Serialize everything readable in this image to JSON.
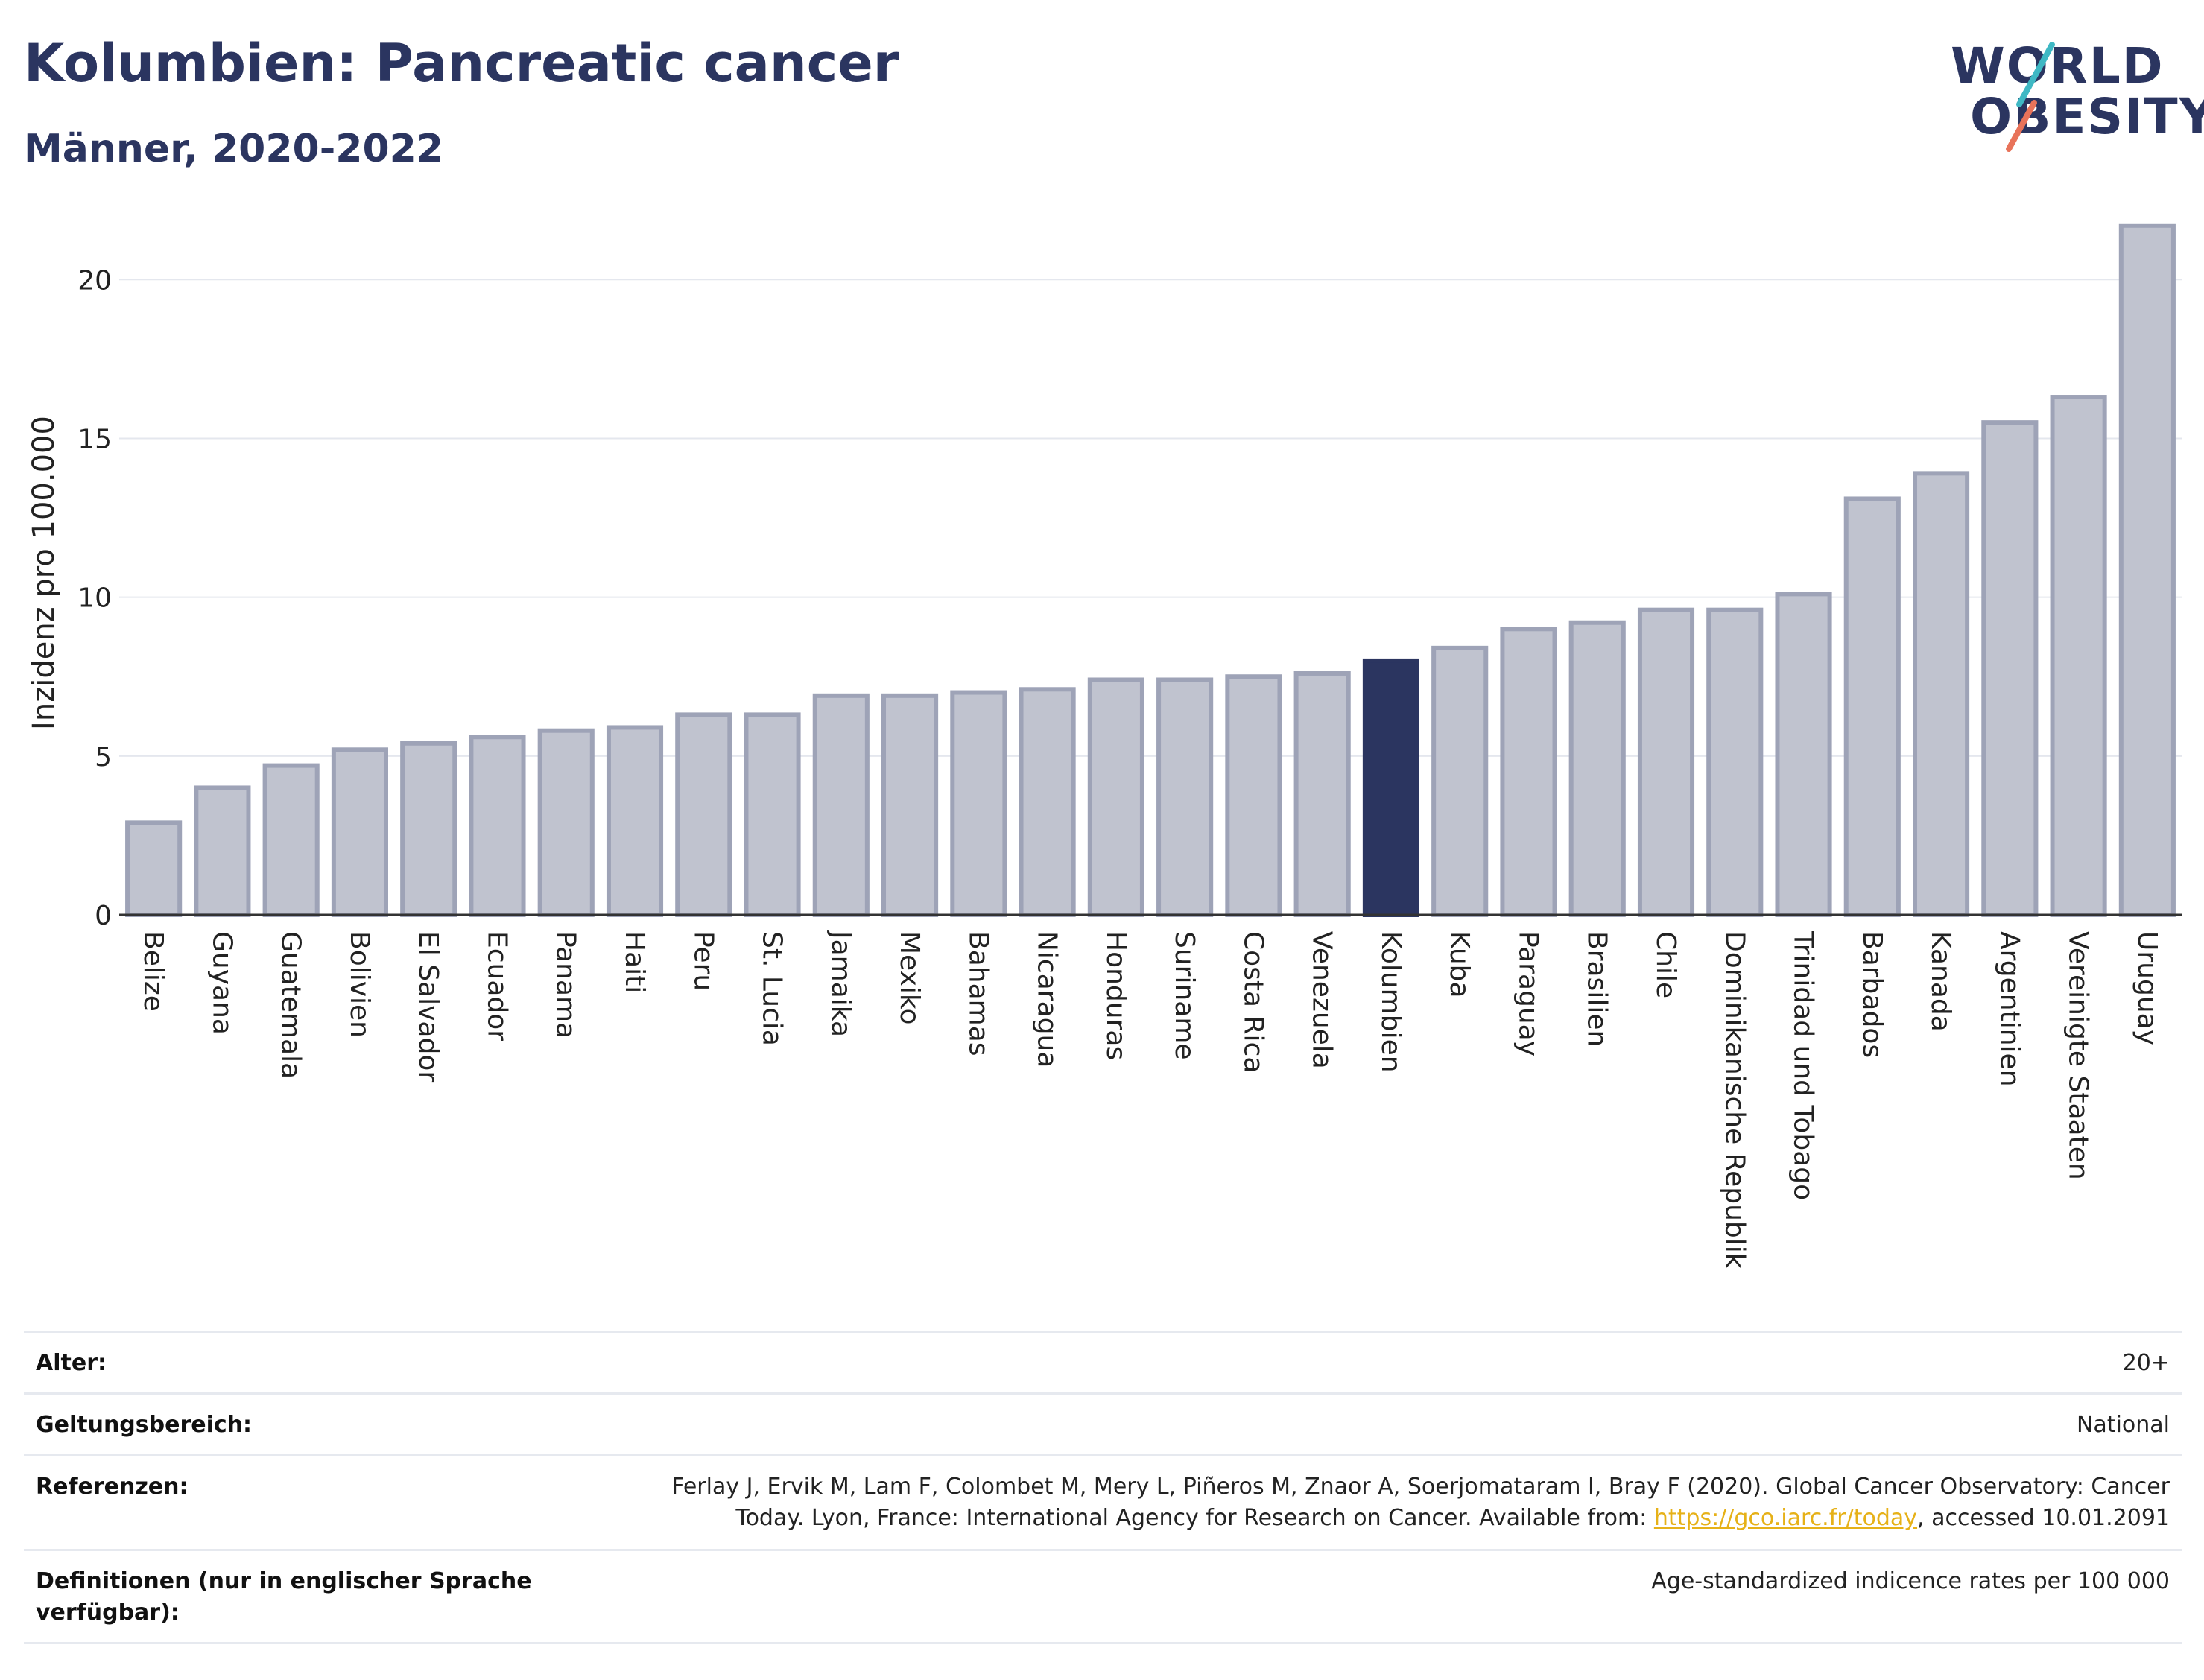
{
  "header": {
    "title": "Kolumbien: Pancreatic cancer",
    "subtitle": "Männer, 2020-2022"
  },
  "logo": {
    "line1": "WORLD",
    "line2": "OBESITY",
    "accent_colors": [
      "#3fb8c4",
      "#e8735a"
    ]
  },
  "colors": {
    "bar_default": "#c0c3cf",
    "bar_default_stroke": "#9ea3b7",
    "bar_highlight": "#2b3560",
    "text_dark": "#2b3560",
    "link": "#e6b118"
  },
  "chart_data": {
    "type": "bar",
    "categories": [
      "Belize",
      "Guyana",
      "Guatemala",
      "Bolivien",
      "El Salvador",
      "Ecuador",
      "Panama",
      "Haiti",
      "Peru",
      "St. Lucia",
      "Jamaika",
      "Mexiko",
      "Bahamas",
      "Nicaragua",
      "Honduras",
      "Suriname",
      "Costa Rica",
      "Venezuela",
      "Kolumbien",
      "Kuba",
      "Paraguay",
      "Brasilien",
      "Chile",
      "Dominikanische Republik",
      "Trinidad und Tobago",
      "Barbados",
      "Kanada",
      "Argentinien",
      "Vereinigte Staaten",
      "Uruguay"
    ],
    "values": [
      2.9,
      4.0,
      4.7,
      5.2,
      5.4,
      5.6,
      5.8,
      5.9,
      6.3,
      6.3,
      6.9,
      6.9,
      7.0,
      7.1,
      7.4,
      7.4,
      7.5,
      7.6,
      8.0,
      8.4,
      9.0,
      9.2,
      9.6,
      9.6,
      10.1,
      13.1,
      13.9,
      15.5,
      16.3,
      21.7
    ],
    "highlight": "Kolumbien",
    "ylabel": "Inzidenz pro 100.000",
    "xlabel": "",
    "ylim": [
      0,
      22
    ],
    "yticks": [
      0,
      5,
      10,
      15,
      20
    ],
    "grid": true,
    "legend": "none"
  },
  "meta": {
    "rows": [
      {
        "label": "Alter:",
        "value": "20+"
      },
      {
        "label": "Geltungsbereich:",
        "value": "National"
      },
      {
        "label": "Referenzen:",
        "value_line1": "Ferlay J, Ervik M, Lam F, Colombet M, Mery L, Piñeros M, Znaor A, Soerjomataram I, Bray F (2020). Global Cancer Observatory: Cancer",
        "value_line2_pre": "Today. Lyon, France: International Agency for Research on Cancer. Available from: ",
        "link": "https://gco.iarc.fr/today",
        "value_line2_post": ", accessed 10.01.2091"
      },
      {
        "label_line1": "Definitionen (nur in englischer Sprache",
        "label_line2": "verfügbar):",
        "value": "Age-standardized indicence rates per 100 000"
      }
    ]
  }
}
